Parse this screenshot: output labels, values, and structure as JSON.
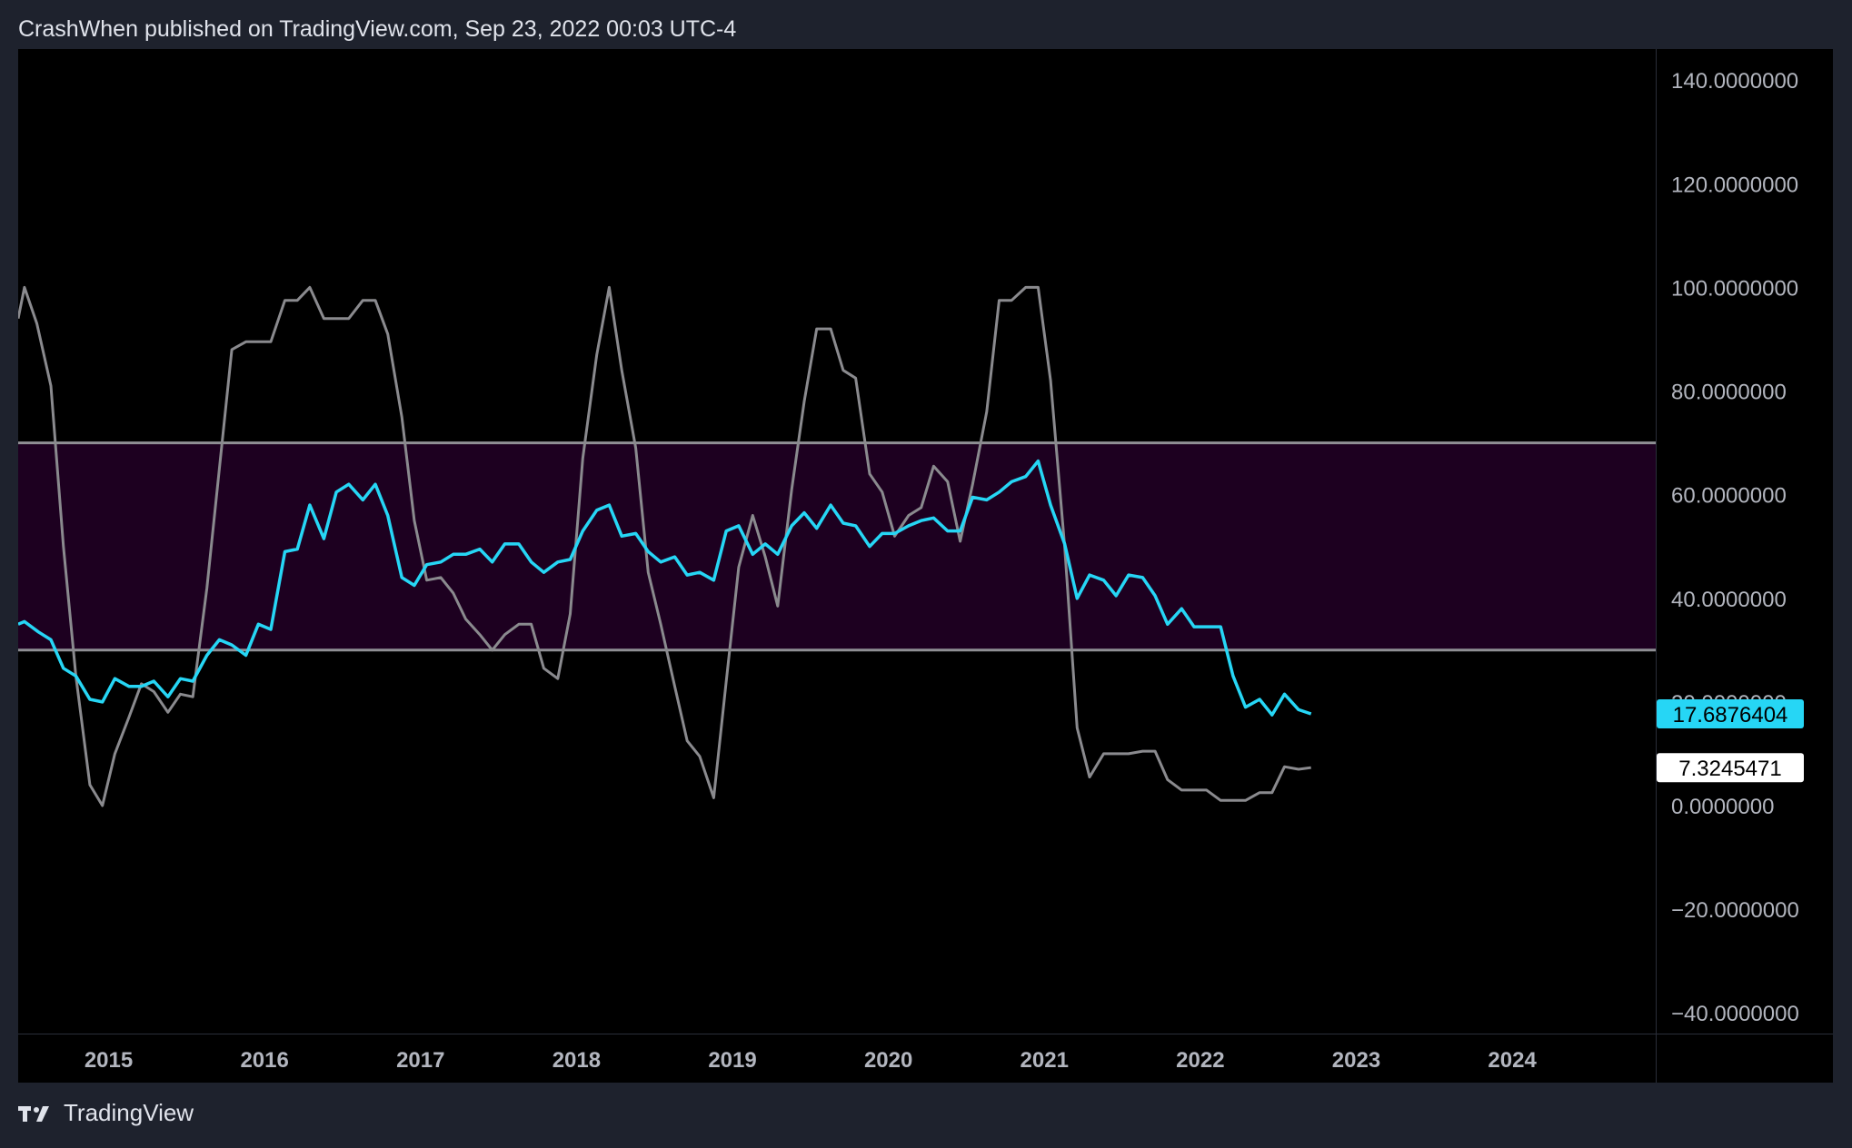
{
  "header": {
    "publisher": "CrashWhen published on TradingView.com, Sep 23, 2022 00:03 UTC-4"
  },
  "footer": {
    "brand": "TradingView",
    "logo_icon": "tradingview-logo-icon"
  },
  "colors": {
    "background": "#000000",
    "frame": "#1e222d",
    "band_fill": "#1d0020",
    "band_line": "#8f8f94",
    "series_cyan": "#26d6f5",
    "series_gray": "#8a8a8e",
    "axis_text": "#b2b5be"
  },
  "chart_data": {
    "type": "line",
    "title": "",
    "xlabel": "",
    "ylabel": "",
    "ylim": [
      -44,
      146
    ],
    "xlim": [
      2014.42,
      2024.92
    ],
    "x_ticks": [
      {
        "value": 2015,
        "label": "2015"
      },
      {
        "value": 2016,
        "label": "2016"
      },
      {
        "value": 2017,
        "label": "2017"
      },
      {
        "value": 2018,
        "label": "2018"
      },
      {
        "value": 2019,
        "label": "2019"
      },
      {
        "value": 2020,
        "label": "2020"
      },
      {
        "value": 2021,
        "label": "2021"
      },
      {
        "value": 2022,
        "label": "2022"
      },
      {
        "value": 2023,
        "label": "2023"
      },
      {
        "value": 2024,
        "label": "2024"
      }
    ],
    "y_ticks": [
      {
        "value": 140,
        "label": "140.0000000"
      },
      {
        "value": 120,
        "label": "120.0000000"
      },
      {
        "value": 100,
        "label": "100.0000000"
      },
      {
        "value": 80,
        "label": "80.0000000"
      },
      {
        "value": 60,
        "label": "60.0000000"
      },
      {
        "value": 40,
        "label": "40.0000000"
      },
      {
        "value": 20,
        "label": "20.0000000"
      },
      {
        "value": 0,
        "label": "0.0000000"
      },
      {
        "value": -20,
        "label": "−20.0000000"
      },
      {
        "value": -40,
        "label": "−40.0000000"
      }
    ],
    "bands": [
      {
        "from": 30,
        "to": 70
      }
    ],
    "grid": false,
    "last_value_labels": [
      {
        "series": 0,
        "label": "17.6876404"
      },
      {
        "series": 1,
        "label": "7.3245471"
      }
    ],
    "series": [
      {
        "color": "#26d6f5",
        "points": [
          [
            2014.42,
            35.0
          ],
          [
            2014.46,
            35.5
          ],
          [
            2014.55,
            33.5
          ],
          [
            2014.63,
            32.0
          ],
          [
            2014.71,
            26.5
          ],
          [
            2014.79,
            25.0
          ],
          [
            2014.88,
            20.5
          ],
          [
            2014.96,
            20.0
          ],
          [
            2015.04,
            24.5
          ],
          [
            2015.13,
            23.0
          ],
          [
            2015.21,
            23.0
          ],
          [
            2015.29,
            24.0
          ],
          [
            2015.38,
            21.0
          ],
          [
            2015.46,
            24.5
          ],
          [
            2015.54,
            24.0
          ],
          [
            2015.63,
            29.0
          ],
          [
            2015.71,
            32.0
          ],
          [
            2015.79,
            31.0
          ],
          [
            2015.88,
            29.0
          ],
          [
            2015.96,
            35.0
          ],
          [
            2016.04,
            34.0
          ],
          [
            2016.13,
            49.0
          ],
          [
            2016.21,
            49.5
          ],
          [
            2016.29,
            58.0
          ],
          [
            2016.38,
            51.5
          ],
          [
            2016.46,
            60.5
          ],
          [
            2016.54,
            62.0
          ],
          [
            2016.63,
            59.0
          ],
          [
            2016.71,
            62.0
          ],
          [
            2016.79,
            56.0
          ],
          [
            2016.88,
            44.0
          ],
          [
            2016.96,
            42.5
          ],
          [
            2017.04,
            46.5
          ],
          [
            2017.13,
            47.0
          ],
          [
            2017.21,
            48.5
          ],
          [
            2017.29,
            48.5
          ],
          [
            2017.38,
            49.5
          ],
          [
            2017.46,
            47.0
          ],
          [
            2017.54,
            50.5
          ],
          [
            2017.63,
            50.5
          ],
          [
            2017.71,
            47.0
          ],
          [
            2017.79,
            45.0
          ],
          [
            2017.88,
            47.0
          ],
          [
            2017.96,
            47.5
          ],
          [
            2018.04,
            53.0
          ],
          [
            2018.13,
            57.0
          ],
          [
            2018.21,
            58.0
          ],
          [
            2018.29,
            52.0
          ],
          [
            2018.38,
            52.5
          ],
          [
            2018.46,
            49.0
          ],
          [
            2018.54,
            47.0
          ],
          [
            2018.63,
            48.0
          ],
          [
            2018.71,
            44.5
          ],
          [
            2018.79,
            45.0
          ],
          [
            2018.88,
            43.5
          ],
          [
            2018.96,
            53.0
          ],
          [
            2019.04,
            54.0
          ],
          [
            2019.13,
            48.5
          ],
          [
            2019.21,
            50.5
          ],
          [
            2019.29,
            48.5
          ],
          [
            2019.38,
            54.0
          ],
          [
            2019.46,
            56.5
          ],
          [
            2019.54,
            53.5
          ],
          [
            2019.63,
            58.0
          ],
          [
            2019.71,
            54.5
          ],
          [
            2019.79,
            54.0
          ],
          [
            2019.88,
            50.0
          ],
          [
            2019.96,
            52.5
          ],
          [
            2020.04,
            52.5
          ],
          [
            2020.13,
            54.0
          ],
          [
            2020.21,
            55.0
          ],
          [
            2020.29,
            55.5
          ],
          [
            2020.38,
            53.0
          ],
          [
            2020.46,
            53.0
          ],
          [
            2020.54,
            59.5
          ],
          [
            2020.63,
            59.0
          ],
          [
            2020.71,
            60.5
          ],
          [
            2020.79,
            62.5
          ],
          [
            2020.88,
            63.5
          ],
          [
            2020.96,
            66.5
          ],
          [
            2021.04,
            58.0
          ],
          [
            2021.13,
            50.5
          ],
          [
            2021.21,
            40.0
          ],
          [
            2021.29,
            44.5
          ],
          [
            2021.38,
            43.5
          ],
          [
            2021.46,
            40.5
          ],
          [
            2021.54,
            44.5
          ],
          [
            2021.63,
            44.0
          ],
          [
            2021.71,
            40.5
          ],
          [
            2021.79,
            35.0
          ],
          [
            2021.88,
            38.0
          ],
          [
            2021.96,
            34.5
          ],
          [
            2022.04,
            34.5
          ],
          [
            2022.13,
            34.5
          ],
          [
            2022.21,
            25.0
          ],
          [
            2022.29,
            19.0
          ],
          [
            2022.38,
            20.5
          ],
          [
            2022.46,
            17.5
          ],
          [
            2022.54,
            21.5
          ],
          [
            2022.63,
            18.5
          ],
          [
            2022.71,
            17.69
          ]
        ]
      },
      {
        "color": "#8a8a8e",
        "points": [
          [
            2014.42,
            94.0
          ],
          [
            2014.46,
            100.0
          ],
          [
            2014.54,
            93.0
          ],
          [
            2014.63,
            81.0
          ],
          [
            2014.71,
            50.0
          ],
          [
            2014.79,
            25.0
          ],
          [
            2014.88,
            4.0
          ],
          [
            2014.96,
            0.0
          ],
          [
            2015.04,
            10.0
          ],
          [
            2015.13,
            17.0
          ],
          [
            2015.21,
            23.5
          ],
          [
            2015.29,
            22.0
          ],
          [
            2015.38,
            18.0
          ],
          [
            2015.46,
            21.5
          ],
          [
            2015.54,
            21.0
          ],
          [
            2015.63,
            42.0
          ],
          [
            2015.71,
            65.0
          ],
          [
            2015.79,
            88.0
          ],
          [
            2015.88,
            89.5
          ],
          [
            2015.96,
            89.5
          ],
          [
            2016.04,
            89.5
          ],
          [
            2016.13,
            97.5
          ],
          [
            2016.21,
            97.5
          ],
          [
            2016.29,
            100.0
          ],
          [
            2016.38,
            94.0
          ],
          [
            2016.46,
            94.0
          ],
          [
            2016.54,
            94.0
          ],
          [
            2016.63,
            97.5
          ],
          [
            2016.71,
            97.5
          ],
          [
            2016.79,
            91.0
          ],
          [
            2016.88,
            75.0
          ],
          [
            2016.96,
            55.0
          ],
          [
            2017.04,
            43.5
          ],
          [
            2017.13,
            44.0
          ],
          [
            2017.21,
            41.0
          ],
          [
            2017.29,
            36.0
          ],
          [
            2017.38,
            33.0
          ],
          [
            2017.46,
            30.0
          ],
          [
            2017.54,
            33.0
          ],
          [
            2017.63,
            35.0
          ],
          [
            2017.71,
            35.0
          ],
          [
            2017.79,
            26.5
          ],
          [
            2017.88,
            24.5
          ],
          [
            2017.96,
            37.0
          ],
          [
            2018.04,
            67.0
          ],
          [
            2018.13,
            87.0
          ],
          [
            2018.21,
            100.0
          ],
          [
            2018.29,
            84.0
          ],
          [
            2018.38,
            69.0
          ],
          [
            2018.46,
            45.0
          ],
          [
            2018.54,
            35.0
          ],
          [
            2018.63,
            23.0
          ],
          [
            2018.71,
            12.5
          ],
          [
            2018.79,
            9.5
          ],
          [
            2018.88,
            1.5
          ],
          [
            2018.96,
            24.0
          ],
          [
            2019.04,
            46.0
          ],
          [
            2019.13,
            56.0
          ],
          [
            2019.21,
            48.0
          ],
          [
            2019.29,
            38.5
          ],
          [
            2019.38,
            61.0
          ],
          [
            2019.46,
            78.0
          ],
          [
            2019.54,
            92.0
          ],
          [
            2019.63,
            92.0
          ],
          [
            2019.71,
            84.0
          ],
          [
            2019.79,
            82.5
          ],
          [
            2019.88,
            64.0
          ],
          [
            2019.96,
            60.5
          ],
          [
            2020.04,
            52.0
          ],
          [
            2020.13,
            56.0
          ],
          [
            2020.21,
            57.5
          ],
          [
            2020.29,
            65.5
          ],
          [
            2020.38,
            62.5
          ],
          [
            2020.46,
            51.0
          ],
          [
            2020.54,
            62.0
          ],
          [
            2020.63,
            76.0
          ],
          [
            2020.71,
            97.5
          ],
          [
            2020.79,
            97.5
          ],
          [
            2020.88,
            100.0
          ],
          [
            2020.96,
            100.0
          ],
          [
            2021.04,
            82.0
          ],
          [
            2021.13,
            50.0
          ],
          [
            2021.21,
            15.0
          ],
          [
            2021.29,
            5.5
          ],
          [
            2021.38,
            10.0
          ],
          [
            2021.46,
            10.0
          ],
          [
            2021.54,
            10.0
          ],
          [
            2021.63,
            10.5
          ],
          [
            2021.71,
            10.5
          ],
          [
            2021.79,
            5.0
          ],
          [
            2021.88,
            3.0
          ],
          [
            2021.96,
            3.0
          ],
          [
            2022.04,
            3.0
          ],
          [
            2022.13,
            1.0
          ],
          [
            2022.21,
            1.0
          ],
          [
            2022.29,
            1.0
          ],
          [
            2022.38,
            2.5
          ],
          [
            2022.46,
            2.5
          ],
          [
            2022.54,
            7.5
          ],
          [
            2022.63,
            7.0
          ],
          [
            2022.71,
            7.32
          ]
        ]
      }
    ]
  }
}
